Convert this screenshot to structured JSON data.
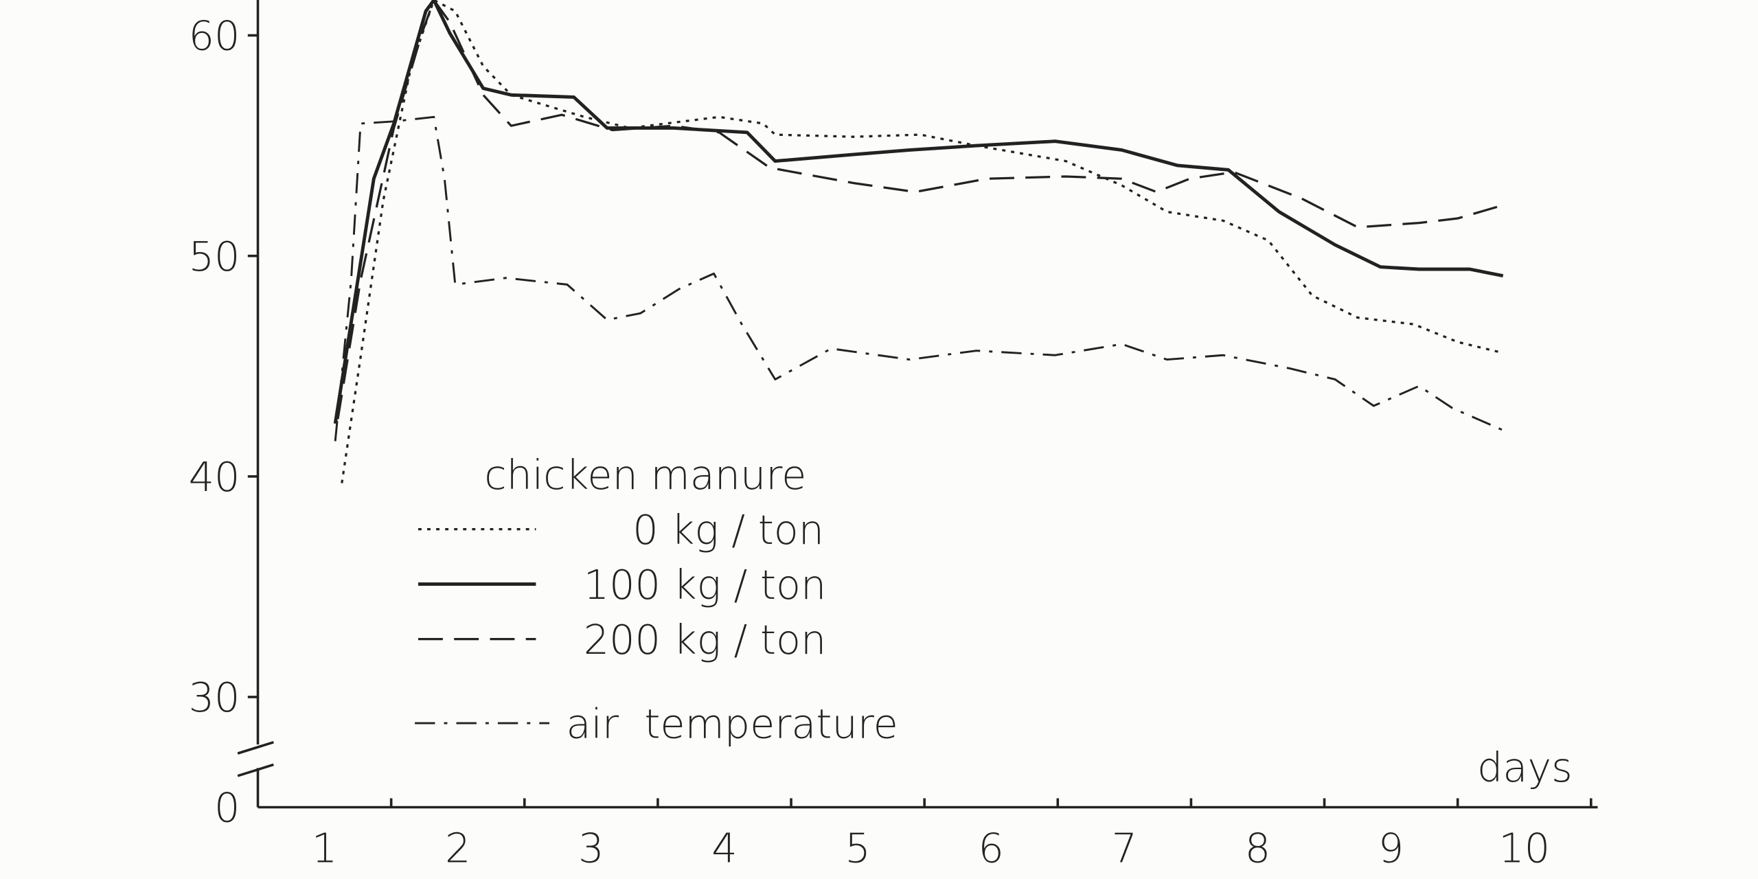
{
  "chart_data": {
    "type": "line",
    "legend_title": "chicken manure",
    "xlabel": "days",
    "xlim": [
      0.5,
      10.55
    ],
    "xticks": [
      1,
      2,
      3,
      4,
      5,
      6,
      7,
      8,
      9,
      10
    ],
    "xminor_ticks": [
      1.5,
      2.5,
      3.5,
      4.5,
      5.5,
      6.5,
      7.5,
      8.5,
      9.5,
      10.5
    ],
    "ylim": [
      0,
      62
    ],
    "y_break": [
      0,
      28
    ],
    "yticks": [
      0,
      30,
      40,
      50,
      60
    ],
    "grid": false,
    "series": [
      {
        "name": "0 kg / ton",
        "color": "#222222",
        "dash": "dotted",
        "x": [
          1.13,
          1.27,
          1.44,
          1.65,
          1.82,
          1.98,
          2.19,
          2.4,
          2.95,
          3.29,
          3.96,
          4.29,
          4.38,
          4.97,
          5.47,
          5.89,
          6.56,
          6.98,
          7.32,
          7.74,
          8.08,
          8.41,
          8.75,
          9.17,
          9.5,
          9.84
        ],
        "values": [
          39.7,
          45.4,
          52.5,
          58.6,
          61.6,
          61.1,
          58.6,
          57.3,
          56.3,
          55.8,
          56.3,
          56.0,
          55.5,
          55.4,
          55.5,
          55.0,
          54.3,
          53.2,
          52.0,
          51.6,
          50.7,
          48.2,
          47.2,
          46.9,
          46.1,
          45.6
        ]
      },
      {
        "name": "100 kg / ton",
        "color": "#222222",
        "dash": "solid",
        "x": [
          1.08,
          1.37,
          1.52,
          1.76,
          1.82,
          1.94,
          2.19,
          2.4,
          2.87,
          3.12,
          3.62,
          4.17,
          4.38,
          4.97,
          5.39,
          5.89,
          6.48,
          6.98,
          7.4,
          7.78,
          8.16,
          8.58,
          8.92,
          9.21,
          9.59,
          9.84
        ],
        "values": [
          42.4,
          53.5,
          56.0,
          61.1,
          61.6,
          60.1,
          57.6,
          57.3,
          57.2,
          55.8,
          55.8,
          55.6,
          54.3,
          54.6,
          54.8,
          55.0,
          55.2,
          54.8,
          54.1,
          53.9,
          52.0,
          50.5,
          49.5,
          49.4,
          49.4,
          49.1
        ]
      },
      {
        "name": "200 kg / ton",
        "color": "#222222",
        "dash": "dashed",
        "x": [
          1.1,
          1.27,
          1.52,
          1.73,
          1.82,
          1.94,
          2.19,
          2.4,
          2.78,
          3.16,
          3.62,
          3.96,
          4.34,
          4.97,
          5.43,
          5.97,
          6.56,
          6.98,
          7.24,
          7.49,
          7.82,
          8.33,
          8.75,
          9.21,
          9.5,
          9.84
        ],
        "values": [
          42.6,
          48.9,
          55.8,
          60.1,
          61.6,
          60.6,
          57.3,
          55.9,
          56.4,
          55.7,
          55.9,
          55.6,
          54.0,
          53.3,
          52.9,
          53.5,
          53.6,
          53.5,
          52.9,
          53.5,
          53.8,
          52.6,
          51.3,
          51.5,
          51.7,
          52.3
        ]
      },
      {
        "name": "air  temperature",
        "color": "#222222",
        "dash": "dashdot",
        "x": [
          1.08,
          1.2,
          1.27,
          1.52,
          1.82,
          1.9,
          1.98,
          2.36,
          2.82,
          3.12,
          3.37,
          3.66,
          3.92,
          4.13,
          4.38,
          4.8,
          5.39,
          5.89,
          6.48,
          6.98,
          7.32,
          7.74,
          8.24,
          8.58,
          8.87,
          9.21,
          9.46,
          9.84
        ],
        "values": [
          41.6,
          48.9,
          56.0,
          56.1,
          56.3,
          53.5,
          48.7,
          49.0,
          48.7,
          47.1,
          47.4,
          48.5,
          49.2,
          46.9,
          44.4,
          45.8,
          45.3,
          45.7,
          45.5,
          46.0,
          45.3,
          45.5,
          44.9,
          44.4,
          43.2,
          44.1,
          43.1,
          42.1
        ]
      }
    ]
  }
}
